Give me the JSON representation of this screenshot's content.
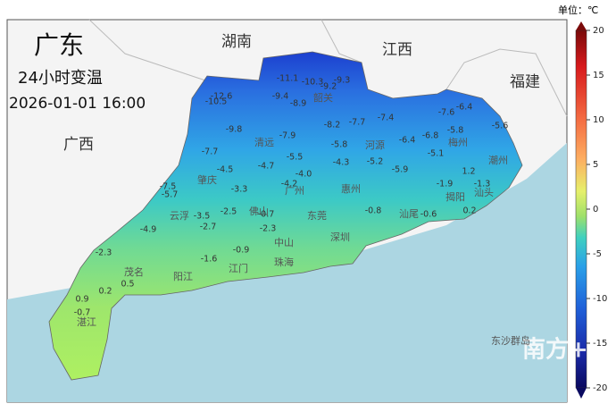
{
  "header": {
    "unit": "单位：℃",
    "title": "广东",
    "subtitle": "24小时变温",
    "datetime": "2026-01-01 16:00",
    "watermark": "南方+"
  },
  "regions": [
    "湖南",
    "江西",
    "福建",
    "广西"
  ],
  "cities": [
    "韶关",
    "清远",
    "河源",
    "梅州",
    "潮州",
    "肇庆",
    "广州",
    "惠州",
    "揭阳",
    "汕头",
    "云浮",
    "佛山",
    "东莞",
    "汕尾",
    "茂名",
    "阳江",
    "江门",
    "中山",
    "深圳",
    "珠海",
    "湛江",
    "东沙群岛"
  ],
  "temperatures": [
    -11.1,
    -10.3,
    -9.3,
    -9.2,
    -12.6,
    -10.5,
    -9.4,
    -8.9,
    -8.2,
    -7.7,
    -7.4,
    -7.6,
    -6.4,
    -9.8,
    -7.9,
    -5.8,
    -6.4,
    -6.8,
    -5.8,
    -5.6,
    -7.7,
    -4.5,
    -4.7,
    -5.5,
    -4.3,
    -5.2,
    -5.9,
    -5.1,
    -7.5,
    -5.7,
    -3.3,
    {
      "value": -4,
      "label": "-4.0"
    },
    -4.2,
    -3.5,
    -2.5,
    -4.9,
    -2.7,
    -2.3,
    -1.9,
    -1.3,
    -0.8,
    -0.7,
    -0.6,
    0.2,
    -1.6,
    -0.9,
    -2.3,
    0.5,
    0.2,
    0.9,
    -0.7,
    1.2
  ],
  "colorbar": {
    "ylim": [
      -20,
      20
    ],
    "yticks": [
      20,
      15,
      10,
      5,
      0,
      -5,
      -10,
      -15,
      -20
    ]
  }
}
